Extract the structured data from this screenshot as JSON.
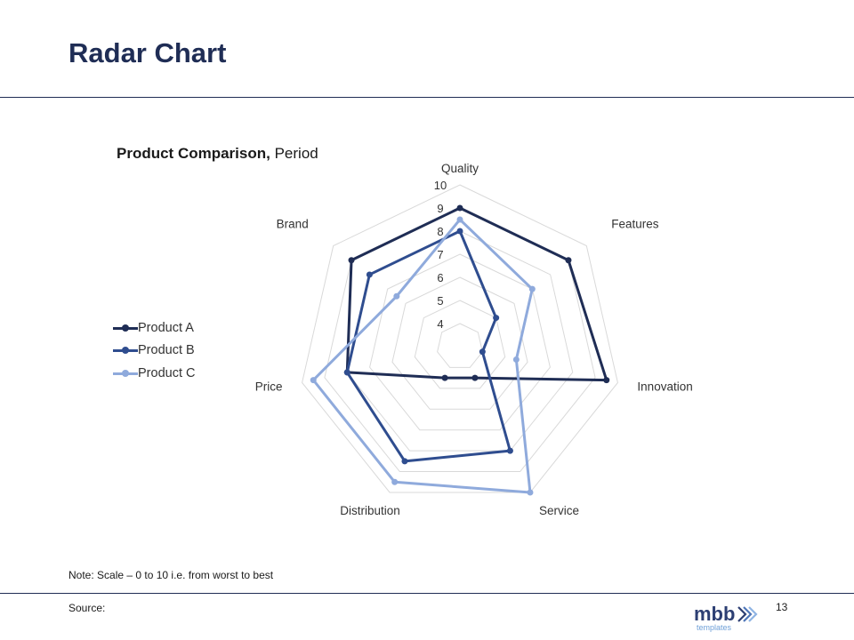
{
  "slide": {
    "title": "Radar Chart",
    "note": "Note: Scale – 0 to 10 i.e. from worst to best",
    "source": "Source:",
    "page_number": "13",
    "logo": {
      "main": "mbb",
      "sub": "templates"
    }
  },
  "chart_data": {
    "type": "radar",
    "title_bold": "Product Comparison,",
    "title_rest": " Period",
    "categories": [
      "Quality",
      "Features",
      "Innovation",
      "Service",
      "Distribution",
      "Price",
      "Brand"
    ],
    "r_min": 3,
    "r_max": 10,
    "ticks": [
      4,
      5,
      6,
      7,
      8,
      9,
      10
    ],
    "tick_labels": [
      "4",
      "5",
      "6",
      "7",
      "8",
      "9",
      "10"
    ],
    "grid": true,
    "legend_position": "left",
    "series": [
      {
        "name": "Product A",
        "color": "#1f2d55",
        "values": [
          9,
          9,
          9.5,
          4.5,
          4.5,
          8,
          9
        ]
      },
      {
        "name": "Product B",
        "color": "#2f4d8f",
        "values": [
          8,
          5,
          4,
          8,
          8.5,
          8,
          8
        ]
      },
      {
        "name": "Product C",
        "color": "#8faadc",
        "values": [
          8.5,
          7,
          5.5,
          10,
          9.5,
          9.5,
          6.5
        ]
      }
    ]
  }
}
